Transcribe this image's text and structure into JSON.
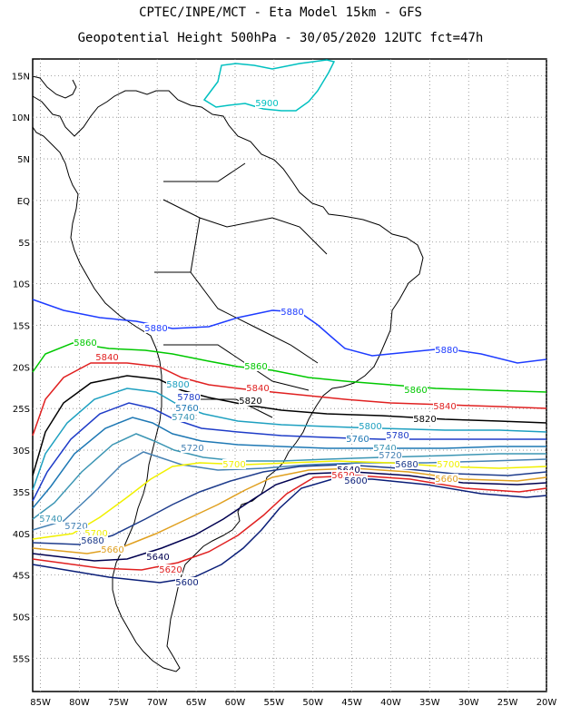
{
  "title": {
    "line1": "CPTEC/INPE/MCT -  Eta Model 15km - GFS",
    "line2": "Geopotential Height 500hPa - 30/05/2020 12UTC fct=47h"
  },
  "axes": {
    "lat_labels": [
      "15N",
      "10N",
      "5N",
      "EQ",
      "5S",
      "10S",
      "15S",
      "20S",
      "25S",
      "30S",
      "35S",
      "40S",
      "45S",
      "50S",
      "55S"
    ],
    "lon_labels": [
      "85W",
      "80W",
      "75W",
      "70W",
      "65W",
      "60W",
      "55W",
      "50W",
      "45W",
      "40W",
      "35W",
      "30W",
      "25W",
      "20W"
    ],
    "lon_range": [
      -86,
      -20
    ],
    "lat_range": [
      -59,
      17
    ],
    "grid": "dotted"
  },
  "contours": [
    {
      "value": 5900,
      "color": "#00c0c0",
      "labels": [
        "5900"
      ]
    },
    {
      "value": 5880,
      "color": "#1e3cff",
      "labels": [
        "5880",
        "5880",
        "5880"
      ]
    },
    {
      "value": 5860,
      "color": "#00c800",
      "labels": [
        "5860",
        "5860",
        "5860"
      ]
    },
    {
      "value": 5840,
      "color": "#e02020",
      "labels": [
        "5840",
        "5840",
        "5840"
      ]
    },
    {
      "value": 5820,
      "color": "#000000",
      "labels": [
        "5820",
        "5820"
      ]
    },
    {
      "value": 5800,
      "color": "#1ea0c0",
      "labels": [
        "5800",
        "5800"
      ]
    },
    {
      "value": 5780,
      "color": "#1e3cc8",
      "labels": [
        "5780",
        "5780"
      ]
    },
    {
      "value": 5760,
      "color": "#1e78b4",
      "labels": [
        "5760",
        "5760"
      ]
    },
    {
      "value": 5740,
      "color": "#3c96b4",
      "labels": [
        "5740",
        "5740",
        "5740"
      ]
    },
    {
      "value": 5720,
      "color": "#4682b4",
      "labels": [
        "5720",
        "5720",
        "5720"
      ]
    },
    {
      "value": 5700,
      "color": "#f0f000",
      "labels": [
        "5700",
        "5700",
        "5700"
      ]
    },
    {
      "value": 5680,
      "color": "#1e3c8c",
      "labels": [
        "5680",
        "5680"
      ]
    },
    {
      "value": 5660,
      "color": "#e0a020",
      "labels": [
        "5660",
        "5660"
      ]
    },
    {
      "value": 5640,
      "color": "#000050",
      "labels": [
        "5640",
        "5640"
      ]
    },
    {
      "value": 5620,
      "color": "#e02020",
      "labels": [
        "5620",
        "5620"
      ]
    },
    {
      "value": 5600,
      "color": "#0a1e78",
      "labels": [
        "5600",
        "5600"
      ]
    }
  ]
}
